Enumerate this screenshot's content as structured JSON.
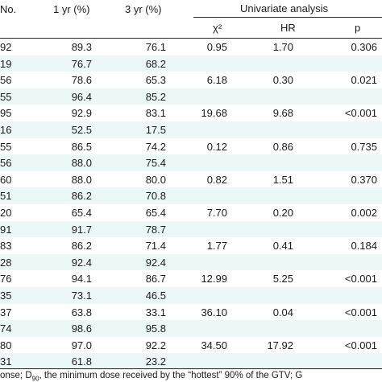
{
  "header": {
    "col_no": "No.",
    "col_1yr": "1 yr (%)",
    "col_3yr": "3 yr (%)",
    "univariate": "Univariate analysis",
    "col_chi": "χ²",
    "col_hr": "HR",
    "col_p": "p"
  },
  "rows": [
    {
      "no": "92",
      "y1": "89.3",
      "y3": "76.1",
      "chi": "0.95",
      "hr": "1.70",
      "p": "0.306",
      "shade": false
    },
    {
      "no": "19",
      "y1": "76.7",
      "y3": "68.2",
      "chi": "",
      "hr": "",
      "p": "",
      "shade": true
    },
    {
      "no": "56",
      "y1": "78.6",
      "y3": "65.3",
      "chi": "6.18",
      "hr": "0.30",
      "p": "0.021",
      "shade": false
    },
    {
      "no": "55",
      "y1": "96.4",
      "y3": "85.2",
      "chi": "",
      "hr": "",
      "p": "",
      "shade": true
    },
    {
      "no": "95",
      "y1": "92.9",
      "y3": "83.1",
      "chi": "19.68",
      "hr": "9.68",
      "p": "<0.001",
      "shade": false
    },
    {
      "no": "16",
      "y1": "52.5",
      "y3": "17.5",
      "chi": "",
      "hr": "",
      "p": "",
      "shade": true
    },
    {
      "no": "55",
      "y1": "86.5",
      "y3": "74.2",
      "chi": "0.12",
      "hr": "0.86",
      "p": "0.735",
      "shade": false
    },
    {
      "no": "56",
      "y1": "88.0",
      "y3": "75.4",
      "chi": "",
      "hr": "",
      "p": "",
      "shade": true
    },
    {
      "no": "60",
      "y1": "88.0",
      "y3": "80.0",
      "chi": "0.82",
      "hr": "1.51",
      "p": "0.370",
      "shade": false
    },
    {
      "no": "51",
      "y1": "86.2",
      "y3": "70.8",
      "chi": "",
      "hr": "",
      "p": "",
      "shade": true
    },
    {
      "no": "20",
      "y1": "65.4",
      "y3": "65.4",
      "chi": "7.70",
      "hr": "0.20",
      "p": "0.002",
      "shade": false
    },
    {
      "no": "91",
      "y1": "91.7",
      "y3": "78.7",
      "chi": "",
      "hr": "",
      "p": "",
      "shade": true
    },
    {
      "no": "83",
      "y1": "86.2",
      "y3": "71.4",
      "chi": "1.77",
      "hr": "0.41",
      "p": "0.184",
      "shade": false
    },
    {
      "no": "28",
      "y1": "92.4",
      "y3": "92.4",
      "chi": "",
      "hr": "",
      "p": "",
      "shade": true
    },
    {
      "no": "76",
      "y1": "94.1",
      "y3": "86.7",
      "chi": "12.99",
      "hr": "5.25",
      "p": "<0.001",
      "shade": false
    },
    {
      "no": "35",
      "y1": "73.1",
      "y3": "46.5",
      "chi": "",
      "hr": "",
      "p": "",
      "shade": true
    },
    {
      "no": "37",
      "y1": "63.8",
      "y3": "33.1",
      "chi": "36.10",
      "hr": "0.04",
      "p": "<0.001",
      "shade": false
    },
    {
      "no": "74",
      "y1": "98.6",
      "y3": "95.8",
      "chi": "",
      "hr": "",
      "p": "",
      "shade": true
    },
    {
      "no": "80",
      "y1": "97.0",
      "y3": "92.2",
      "chi": "34.50",
      "hr": "17.92",
      "p": "<0.001",
      "shade": false
    },
    {
      "no": "31",
      "y1": "61.8",
      "y3": "23.2",
      "chi": "",
      "hr": "",
      "p": "",
      "shade": true
    }
  ],
  "footnote": {
    "pre": "onse; D",
    "sub": "90",
    "post": ", the minimum dose received by the “hottest” 90% of the GTV; G"
  }
}
